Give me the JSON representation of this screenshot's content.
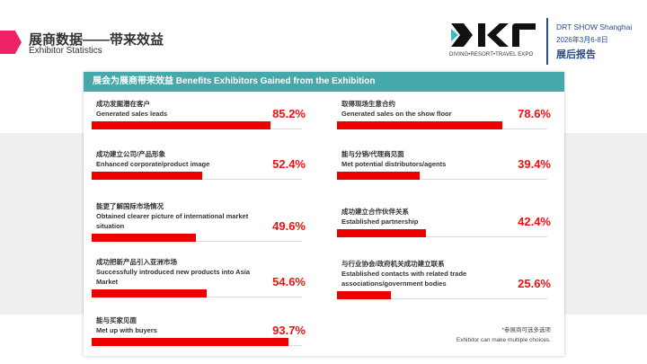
{
  "header": {
    "title": "展商数据——带来效益",
    "subtitle": "Exhibitor Statistics"
  },
  "brand": {
    "logo_text": "DIVING•RESORT•TRAVEL EXPO",
    "show": "DRT SHOW Shanghai",
    "date": "2026年3月6-8日",
    "report": "展后报告"
  },
  "card": {
    "title": "展会为展商带来效益 Benefits Exhibitors Gained from the Exhibition",
    "items": [
      {
        "cn": "成功发掘潜在客户",
        "en": "Generated sales leads",
        "pct": "85.2%",
        "value": 85.2
      },
      {
        "cn": "取得现场生意合约",
        "en": "Generated sales on the show floor",
        "pct": "78.6%",
        "value": 78.6
      },
      {
        "cn": "成功建立公司/产品形象",
        "en": "Enhanced corporate/product image",
        "pct": "52.4%",
        "value": 52.4
      },
      {
        "cn": "能与分销/代理商见面",
        "en": "Met potential distributors/agents",
        "pct": "39.4%",
        "value": 39.4
      },
      {
        "cn": "能更了解国际市场情况",
        "en": "Obtained clearer picture of international market situation",
        "pct": "49.6%",
        "value": 49.6
      },
      {
        "cn": "成功建立合作伙伴关系",
        "en": "Established partnership",
        "pct": "42.4%",
        "value": 42.4
      },
      {
        "cn": "成功把新产品引入亚洲市场",
        "en": "Successfully introduced new products into Asia Market",
        "pct": "54.6%",
        "value": 54.6
      },
      {
        "cn": "与行业协会/政府机关成功建立联系",
        "en": "Established contacts with related trade associations/government bodies",
        "pct": "25.6%",
        "value": 25.6
      },
      {
        "cn": "能与买家见面",
        "en": "Met up with buyers",
        "pct": "93.7%",
        "value": 93.7
      }
    ],
    "note_cn": "*参展商可选多选项",
    "note_en": "Exhibitor can make multiple choices."
  },
  "colors": {
    "accent": "#ee0000",
    "teal": "#45a8ab",
    "navy": "#2b4a8c"
  }
}
